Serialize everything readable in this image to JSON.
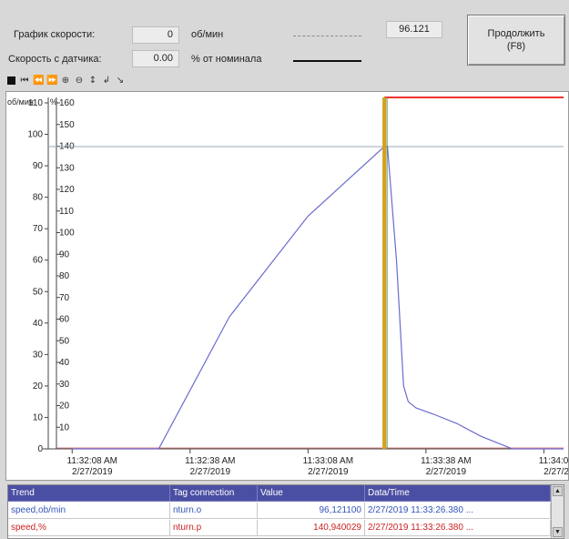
{
  "header": {
    "speed_graph_label": "График скорости:",
    "speed_graph_value": "0",
    "speed_graph_unit": "об/мин",
    "sensor_label": "Скорость с датчика:",
    "sensor_value": "0.00",
    "sensor_unit": "% от номинала",
    "readout": "96.121",
    "continue_line1": "Продолжить",
    "continue_line2": "(F8)"
  },
  "toolbar": {
    "icons": [
      "stop-icon",
      "first-icon",
      "rewind-icon",
      "forward-icon",
      "zoom-in-icon",
      "zoom-out-icon",
      "move-axes-icon",
      "original-view-icon",
      "ruler-icon"
    ]
  },
  "chart_data": {
    "type": "line",
    "y_axes": [
      {
        "unit": "об/мин",
        "ylim": [
          0,
          110
        ],
        "ticks": [
          "0",
          "10",
          "20",
          "30",
          "40",
          "50",
          "60",
          "70",
          "80",
          "90",
          "100",
          "110"
        ]
      },
      {
        "unit": "%",
        "ylim": [
          0,
          160
        ],
        "ticks": [
          "10",
          "20",
          "30",
          "40",
          "50",
          "60",
          "70",
          "80",
          "90",
          "100",
          "110",
          "120",
          "130",
          "140",
          "150",
          "160"
        ]
      }
    ],
    "x_ticks": [
      {
        "time": "11:32:08 AM",
        "date": "2/27/2019"
      },
      {
        "time": "11:32:38 AM",
        "date": "2/27/2019"
      },
      {
        "time": "11:33:08 AM",
        "date": "2/27/2019"
      },
      {
        "time": "11:33:38 AM",
        "date": "2/27/2019"
      },
      {
        "time": "11:34:08 AM",
        "date": "2/27/2019"
      }
    ],
    "x_seconds_range": [
      -4,
      125
    ],
    "series": [
      {
        "color": "#6b6bcf",
        "x": [
          0,
          20,
          22,
          40,
          60,
          79.4,
          80.2,
          82.5,
          84.3,
          85.5,
          87.5,
          92,
          98,
          104,
          112,
          125
        ],
        "y": [
          0,
          0,
          0,
          42,
          74,
          96.1,
          96.1,
          60,
          20,
          15,
          13,
          11,
          8,
          4,
          0,
          0
        ]
      }
    ],
    "cursor_x": 79.4,
    "crosshair_y": 96.121,
    "cursor_color": "#d4a020",
    "threshold_color": "#ee3333"
  },
  "table": {
    "headers": [
      "Trend",
      "Tag connection",
      "Value",
      "Data/Time"
    ],
    "rows": [
      {
        "trend": "speed,ob/min",
        "tag": "nturn.o",
        "value": "96,121100",
        "datetime": "2/27/2019 11:33:26.380 ...",
        "color": "#3355bb"
      },
      {
        "trend": "speed,%",
        "tag": "nturn.p",
        "value": "140,940029",
        "datetime": "2/27/2019 11:33:26.380 ...",
        "color": "#cc2222"
      }
    ]
  }
}
